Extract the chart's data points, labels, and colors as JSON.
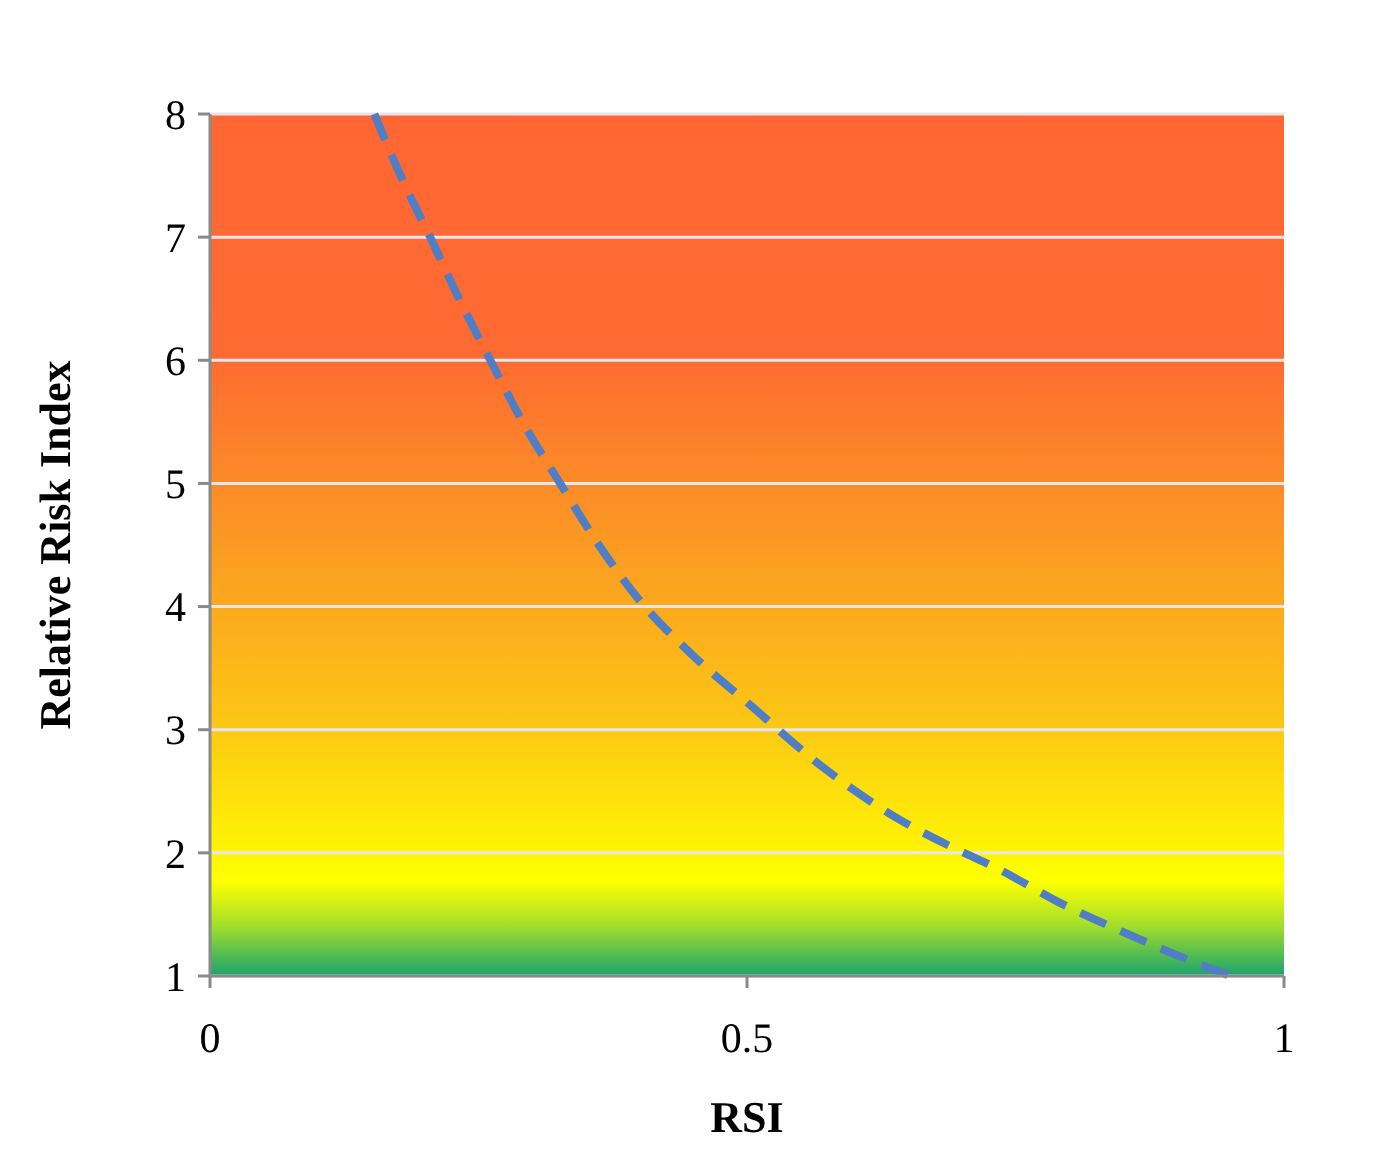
{
  "chart_data": {
    "type": "line",
    "xlabel": "RSI",
    "ylabel": "Relative Risk Index",
    "xlim": [
      0,
      1
    ],
    "ylim": [
      1,
      8
    ],
    "xticks": [
      0,
      0.5,
      1
    ],
    "yticks": [
      1,
      2,
      3,
      4,
      5,
      6,
      7,
      8
    ],
    "grid": "y",
    "line_style": "dashed",
    "marker": "none",
    "series": [
      {
        "color": "#4f7ec4",
        "x": [
          0.153,
          0.18,
          0.205,
          0.233,
          0.261,
          0.293,
          0.326,
          0.362,
          0.4,
          0.45,
          0.503,
          0.57,
          0.642,
          0.69,
          0.736,
          0.79,
          0.847,
          0.9,
          0.95
        ],
        "values": [
          8,
          7.45,
          7,
          6.48,
          6,
          5.47,
          5,
          4.5,
          4.05,
          3.6,
          3.2,
          2.7,
          2.27,
          2.05,
          1.86,
          1.6,
          1.37,
          1.17,
          1.0
        ]
      }
    ]
  }
}
